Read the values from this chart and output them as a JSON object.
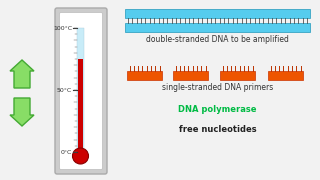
{
  "bg_color": "#f2f2f2",
  "thermo_outer_color": "#cccccc",
  "thermo_inner_color": "#ffffff",
  "thermo_tube_color": "#c8ecf8",
  "thermo_mercury_color": "#cc0000",
  "thermo_bulb_color": "#cc0000",
  "tick_labels": [
    "0°C",
    "50°C",
    "100°C"
  ],
  "arrow_color": "#88dd66",
  "arrow_edge_color": "#44aa33",
  "dna_cyan": "#55ccee",
  "dna_edge": "#2299bb",
  "dna_rung_color": "#444444",
  "primer_color": "#ee5500",
  "primer_edge": "#cc3300",
  "primer_spike_color": "#bb3300",
  "label_dna": "double-stranded DNA to be amplified",
  "label_primers": "single-stranded DNA primers",
  "label_polymerase": "DNA polymerase",
  "label_nucleotides": "free nucleotides",
  "polymerase_color": "#00bb44",
  "nucleotides_color": "#222222",
  "label_fontsize": 5.5,
  "label_bold_fontsize": 6.0
}
